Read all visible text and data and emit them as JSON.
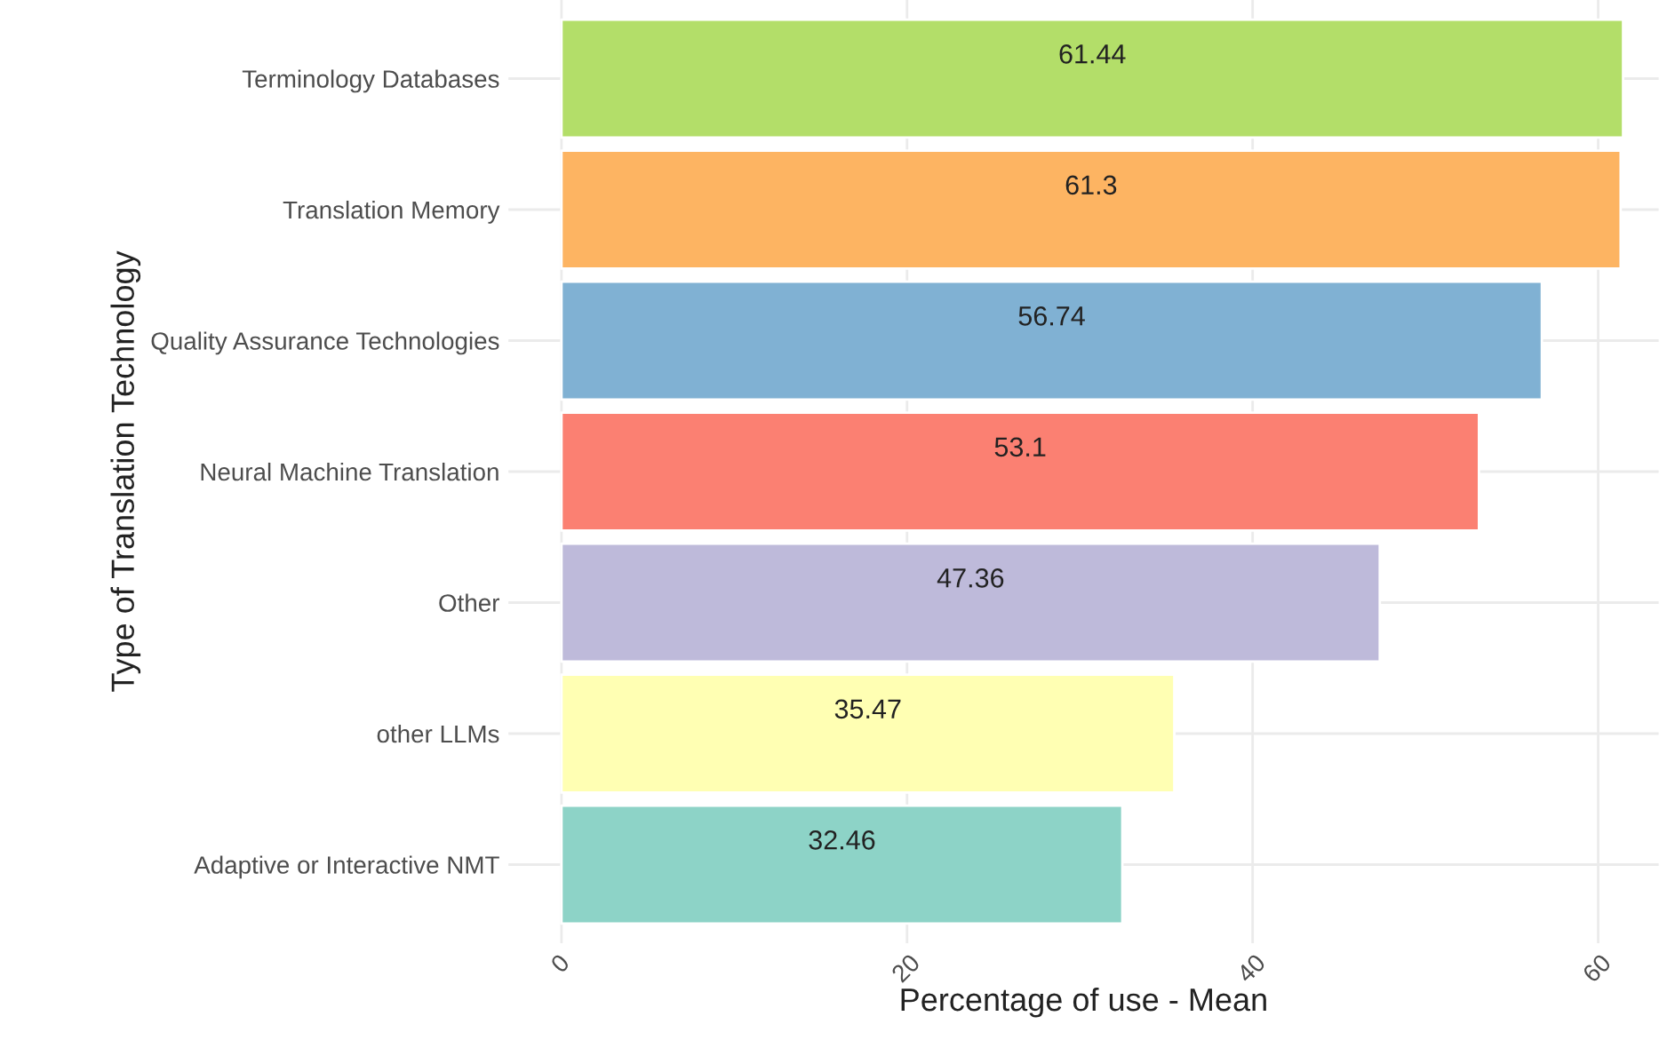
{
  "chart_data": {
    "type": "bar",
    "orientation": "horizontal",
    "xlabel": "Percentage of use - Mean",
    "ylabel": "Type of Translation Technology",
    "categories": [
      "Terminology Databases",
      "Translation Memory",
      "Quality Assurance Technologies",
      "Neural Machine Translation",
      "Other",
      "other LLMs",
      "Adaptive or Interactive NMT"
    ],
    "values": [
      61.44,
      61.3,
      56.74,
      53.1,
      47.36,
      35.47,
      32.46
    ],
    "colors": [
      "#b3de69",
      "#fdb462",
      "#80b1d3",
      "#fb8072",
      "#bebada",
      "#ffffb3",
      "#8dd3c7"
    ],
    "xlim": [
      -3.07,
      63.5
    ],
    "xticks": [
      0,
      20,
      40,
      60
    ],
    "data_labels": true,
    "grid": true,
    "legend": false
  }
}
